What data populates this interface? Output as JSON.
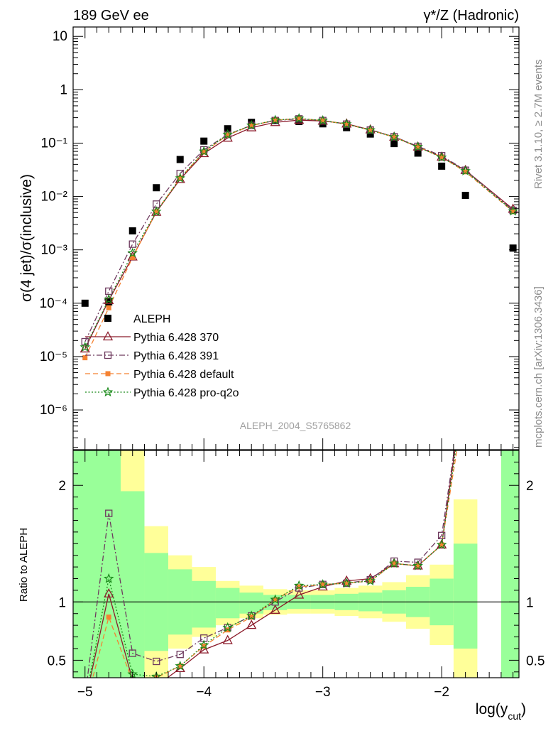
{
  "header": {
    "left": "189 GeV ee",
    "right": "γ*/Z (Hadronic)"
  },
  "side_labels": {
    "rivet": "Rivet 3.1.10, ≥ 2.7M events",
    "mcplots": "mcplots.cern.ch [arXiv:1306.3436]"
  },
  "watermark": "ALEPH_2004_S5765862",
  "colors": {
    "data": "#000000",
    "p370": "#8b1a2a",
    "p391": "#6e3a5e",
    "pdefault": "#f58231",
    "pq2o": "#1a8a1a",
    "band_green": "#99ff99",
    "band_yellow": "#ffff99"
  },
  "chart_data": [
    {
      "type": "scatter",
      "panel": "main",
      "ylabel": "σ(4 jet)/σ(inclusive)",
      "yscale": "log",
      "ylim": [
        1.8e-07,
        15
      ],
      "xlim": [
        -5.1,
        -1.35
      ],
      "y_ticks": [
        "10⁻⁶",
        "10⁻⁵",
        "10⁻⁴",
        "10⁻³",
        "10⁻²",
        "10⁻¹",
        "1",
        "10"
      ],
      "legend_position": "bottom-left",
      "series": [
        {
          "name": "ALEPH",
          "style": "data",
          "x": [
            -5.0,
            -4.8,
            -4.6,
            -4.4,
            -4.2,
            -4.0,
            -3.8,
            -3.6,
            -3.4,
            -3.2,
            -3.0,
            -2.8,
            -2.6,
            -2.4,
            -2.2,
            -2.0,
            -1.8,
            -1.4
          ],
          "y": [
            0.0001,
            0.000106,
            0.00227,
            0.0146,
            0.0493,
            0.109,
            0.186,
            0.245,
            0.264,
            0.255,
            0.23,
            0.195,
            0.148,
            0.098,
            0.065,
            0.037,
            0.0105,
            0.00108
          ]
        },
        {
          "name": "Pythia 6.428 370",
          "style": "triangle",
          "x": [
            -5.0,
            -4.8,
            -4.6,
            -4.4,
            -4.2,
            -4.0,
            -3.8,
            -3.6,
            -3.4,
            -3.2,
            -3.0,
            -2.8,
            -2.6,
            -2.4,
            -2.2,
            -2.0,
            -1.8,
            -1.4
          ],
          "y": [
            1.4e-05,
            0.000113,
            0.00074,
            0.0051,
            0.021,
            0.064,
            0.125,
            0.195,
            0.245,
            0.27,
            0.26,
            0.23,
            0.178,
            0.13,
            0.085,
            0.055,
            0.031,
            0.0058
          ]
        },
        {
          "name": "Pythia 6.428 391",
          "style": "square-open",
          "x": [
            -5.0,
            -4.8,
            -4.6,
            -4.4,
            -4.2,
            -4.0,
            -3.8,
            -3.6,
            -3.4,
            -3.2,
            -3.0,
            -2.8,
            -2.6,
            -2.4,
            -2.2,
            -2.0,
            -1.8,
            -1.4
          ],
          "y": [
            1.9e-05,
            0.000168,
            0.00128,
            0.0072,
            0.027,
            0.075,
            0.145,
            0.215,
            0.265,
            0.285,
            0.265,
            0.227,
            0.176,
            0.132,
            0.087,
            0.058,
            0.031,
            0.0055
          ]
        },
        {
          "name": "Pythia 6.428 default",
          "style": "square-filled",
          "x": [
            -5.0,
            -4.8,
            -4.6,
            -4.4,
            -4.2,
            -4.0,
            -3.8,
            -3.6,
            -3.4,
            -3.2,
            -3.0,
            -2.8,
            -2.6,
            -2.4,
            -2.2,
            -2.0,
            -1.8,
            -1.4
          ],
          "y": [
            9.5e-06,
            8.2e-05,
            0.00072,
            0.0052,
            0.022,
            0.068,
            0.142,
            0.212,
            0.27,
            0.288,
            0.265,
            0.226,
            0.175,
            0.13,
            0.085,
            0.055,
            0.029,
            0.0052
          ]
        },
        {
          "name": "Pythia 6.428 pro-q2o",
          "style": "star",
          "x": [
            -5.0,
            -4.8,
            -4.6,
            -4.4,
            -4.2,
            -4.0,
            -3.8,
            -3.6,
            -3.4,
            -3.2,
            -3.0,
            -2.8,
            -2.6,
            -2.4,
            -2.2,
            -2.0,
            -1.8,
            -1.4
          ],
          "y": [
            1.5e-05,
            0.000118,
            0.00087,
            0.0052,
            0.022,
            0.07,
            0.145,
            0.215,
            0.27,
            0.29,
            0.265,
            0.227,
            0.175,
            0.13,
            0.085,
            0.054,
            0.03,
            0.0053
          ]
        }
      ]
    },
    {
      "type": "line",
      "panel": "ratio",
      "ylabel": "Ratio to ALEPH",
      "xlabel": "log(y_cut)",
      "ylim": [
        0.35,
        2.3
      ],
      "xlim": [
        -5.1,
        -1.35
      ],
      "y_ticks": [
        "0.5",
        "1",
        "2"
      ],
      "x_ticks": [
        "−5",
        "−4",
        "−3",
        "−2"
      ],
      "bands": [
        {
          "x0": -5.1,
          "x1": -4.9,
          "g": [
            0.0,
            2.5
          ],
          "yl": [
            0.0,
            2.5
          ]
        },
        {
          "x0": -4.9,
          "x1": -4.7,
          "g": [
            0.0,
            2.5
          ],
          "yl": [
            0.0,
            2.5
          ]
        },
        {
          "x0": -4.7,
          "x1": -4.5,
          "g": [
            0.0,
            1.95
          ],
          "yl": [
            0.0,
            2.5
          ]
        },
        {
          "x0": -4.5,
          "x1": -4.3,
          "g": [
            0.58,
            1.42
          ],
          "yl": [
            0.0,
            1.65
          ]
        },
        {
          "x0": -4.3,
          "x1": -4.1,
          "g": [
            0.72,
            1.28
          ],
          "yl": [
            0.6,
            1.4
          ]
        },
        {
          "x0": -4.1,
          "x1": -3.9,
          "g": [
            0.78,
            1.18
          ],
          "yl": [
            0.7,
            1.3
          ]
        },
        {
          "x0": -3.9,
          "x1": -3.7,
          "g": [
            0.86,
            1.12
          ],
          "yl": [
            0.8,
            1.18
          ]
        },
        {
          "x0": -3.7,
          "x1": -3.5,
          "g": [
            0.9,
            1.08
          ],
          "yl": [
            0.86,
            1.14
          ]
        },
        {
          "x0": -3.5,
          "x1": -3.3,
          "g": [
            0.93,
            1.06
          ],
          "yl": [
            0.89,
            1.11
          ]
        },
        {
          "x0": -3.3,
          "x1": -3.1,
          "g": [
            0.94,
            1.06
          ],
          "yl": [
            0.9,
            1.1
          ]
        },
        {
          "x0": -3.1,
          "x1": -2.9,
          "g": [
            0.94,
            1.06
          ],
          "yl": [
            0.9,
            1.1
          ]
        },
        {
          "x0": -2.9,
          "x1": -2.7,
          "g": [
            0.93,
            1.07
          ],
          "yl": [
            0.88,
            1.12
          ]
        },
        {
          "x0": -2.7,
          "x1": -2.5,
          "g": [
            0.92,
            1.08
          ],
          "yl": [
            0.86,
            1.14
          ]
        },
        {
          "x0": -2.5,
          "x1": -2.3,
          "g": [
            0.9,
            1.1
          ],
          "yl": [
            0.83,
            1.17
          ]
        },
        {
          "x0": -2.3,
          "x1": -2.1,
          "g": [
            0.87,
            1.13
          ],
          "yl": [
            0.77,
            1.23
          ]
        },
        {
          "x0": -2.1,
          "x1": -1.9,
          "g": [
            0.8,
            1.2
          ],
          "yl": [
            0.63,
            1.32
          ]
        },
        {
          "x0": -1.9,
          "x1": -1.7,
          "g": [
            0.6,
            1.5
          ],
          "yl": [
            0.0,
            1.88
          ]
        },
        {
          "x0": -1.5,
          "x1": -1.3,
          "g": [
            0.0,
            2.5
          ],
          "yl": [
            0.0,
            2.5
          ]
        }
      ],
      "series": [
        {
          "name": "Pythia 6.428 370",
          "x": [
            -5.0,
            -4.8,
            -4.6,
            -4.4,
            -4.2,
            -4.0,
            -3.8,
            -3.6,
            -3.4,
            -3.2,
            -3.0,
            -2.8,
            -2.6,
            -2.4,
            -2.2,
            -2.0,
            -1.8
          ],
          "y": [
            0.14,
            1.07,
            0.33,
            0.28,
            0.43,
            0.59,
            0.67,
            0.8,
            0.93,
            1.06,
            1.13,
            1.18,
            1.2,
            1.33,
            1.31,
            1.49,
            2.95
          ]
        },
        {
          "name": "Pythia 6.428 391",
          "x": [
            -5.0,
            -4.8,
            -4.6,
            -4.4,
            -4.2,
            -4.0,
            -3.8,
            -3.6,
            -3.4,
            -3.2,
            -3.0,
            -2.8,
            -2.6,
            -2.4,
            -2.2,
            -2.0,
            -1.8
          ],
          "y": [
            0.19,
            1.76,
            0.56,
            0.49,
            0.55,
            0.69,
            0.78,
            0.88,
            1.0,
            1.12,
            1.15,
            1.16,
            1.19,
            1.35,
            1.34,
            1.57,
            2.95
          ]
        },
        {
          "name": "Pythia 6.428 default",
          "x": [
            -5.0,
            -4.8,
            -4.6,
            -4.4,
            -4.2,
            -4.0,
            -3.8,
            -3.6,
            -3.4,
            -3.2,
            -3.0,
            -2.8,
            -2.6,
            -2.4,
            -2.2,
            -2.0,
            -1.8
          ],
          "y": [
            0.1,
            0.87,
            0.32,
            0.35,
            0.45,
            0.62,
            0.76,
            0.87,
            1.02,
            1.13,
            1.15,
            1.16,
            1.18,
            1.33,
            1.31,
            1.49,
            2.76
          ]
        },
        {
          "name": "Pythia 6.428 pro-q2o",
          "x": [
            -5.0,
            -4.8,
            -4.6,
            -4.4,
            -4.2,
            -4.0,
            -3.8,
            -3.6,
            -3.4,
            -3.2,
            -3.0,
            -2.8,
            -2.6,
            -2.4,
            -2.2,
            -2.0,
            -1.8
          ],
          "y": [
            0.15,
            1.2,
            0.38,
            0.36,
            0.45,
            0.63,
            0.78,
            0.88,
            1.02,
            1.14,
            1.15,
            1.16,
            1.18,
            1.33,
            1.31,
            1.49,
            2.86
          ]
        }
      ]
    }
  ]
}
